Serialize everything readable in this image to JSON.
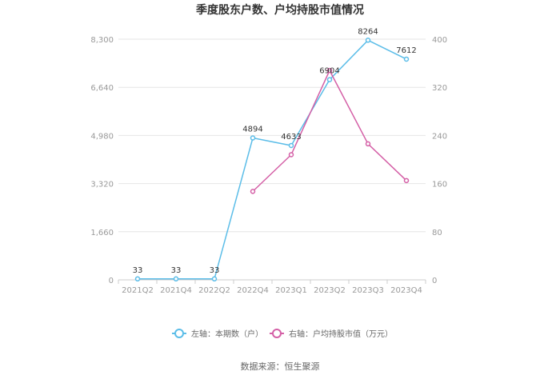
{
  "chart_data": {
    "type": "line",
    "title": "季度股东户数、户均持股市值情况",
    "categories": [
      "2021Q2",
      "2021Q4",
      "2022Q2",
      "2022Q4",
      "2023Q1",
      "2023Q2",
      "2023Q3",
      "2023Q4"
    ],
    "y_left": {
      "ticks": [
        "0",
        "1,660",
        "3,320",
        "4,980",
        "6,640",
        "8,300"
      ],
      "lim": [
        0,
        8300
      ]
    },
    "y_right": {
      "ticks": [
        "0",
        "80",
        "160",
        "240",
        "320",
        "400"
      ],
      "lim": [
        0,
        400
      ]
    },
    "series": [
      {
        "name": "左轴：本期数（户）",
        "axis": "left",
        "color": "#5bbde8",
        "values": [
          33,
          33,
          33,
          4894,
          4633,
          6904,
          8264,
          7612
        ],
        "labels": [
          "33",
          "33",
          "33",
          "4894",
          "4633",
          "6904",
          "8264",
          "7612"
        ]
      },
      {
        "name": "右轴：户均持股市值（万元）",
        "axis": "right",
        "color": "#d45fa6",
        "values": [
          null,
          null,
          null,
          147,
          208,
          348,
          226,
          165
        ]
      }
    ],
    "grid": true,
    "legend_position": "bottom"
  },
  "source": "数据来源：恒生聚源"
}
